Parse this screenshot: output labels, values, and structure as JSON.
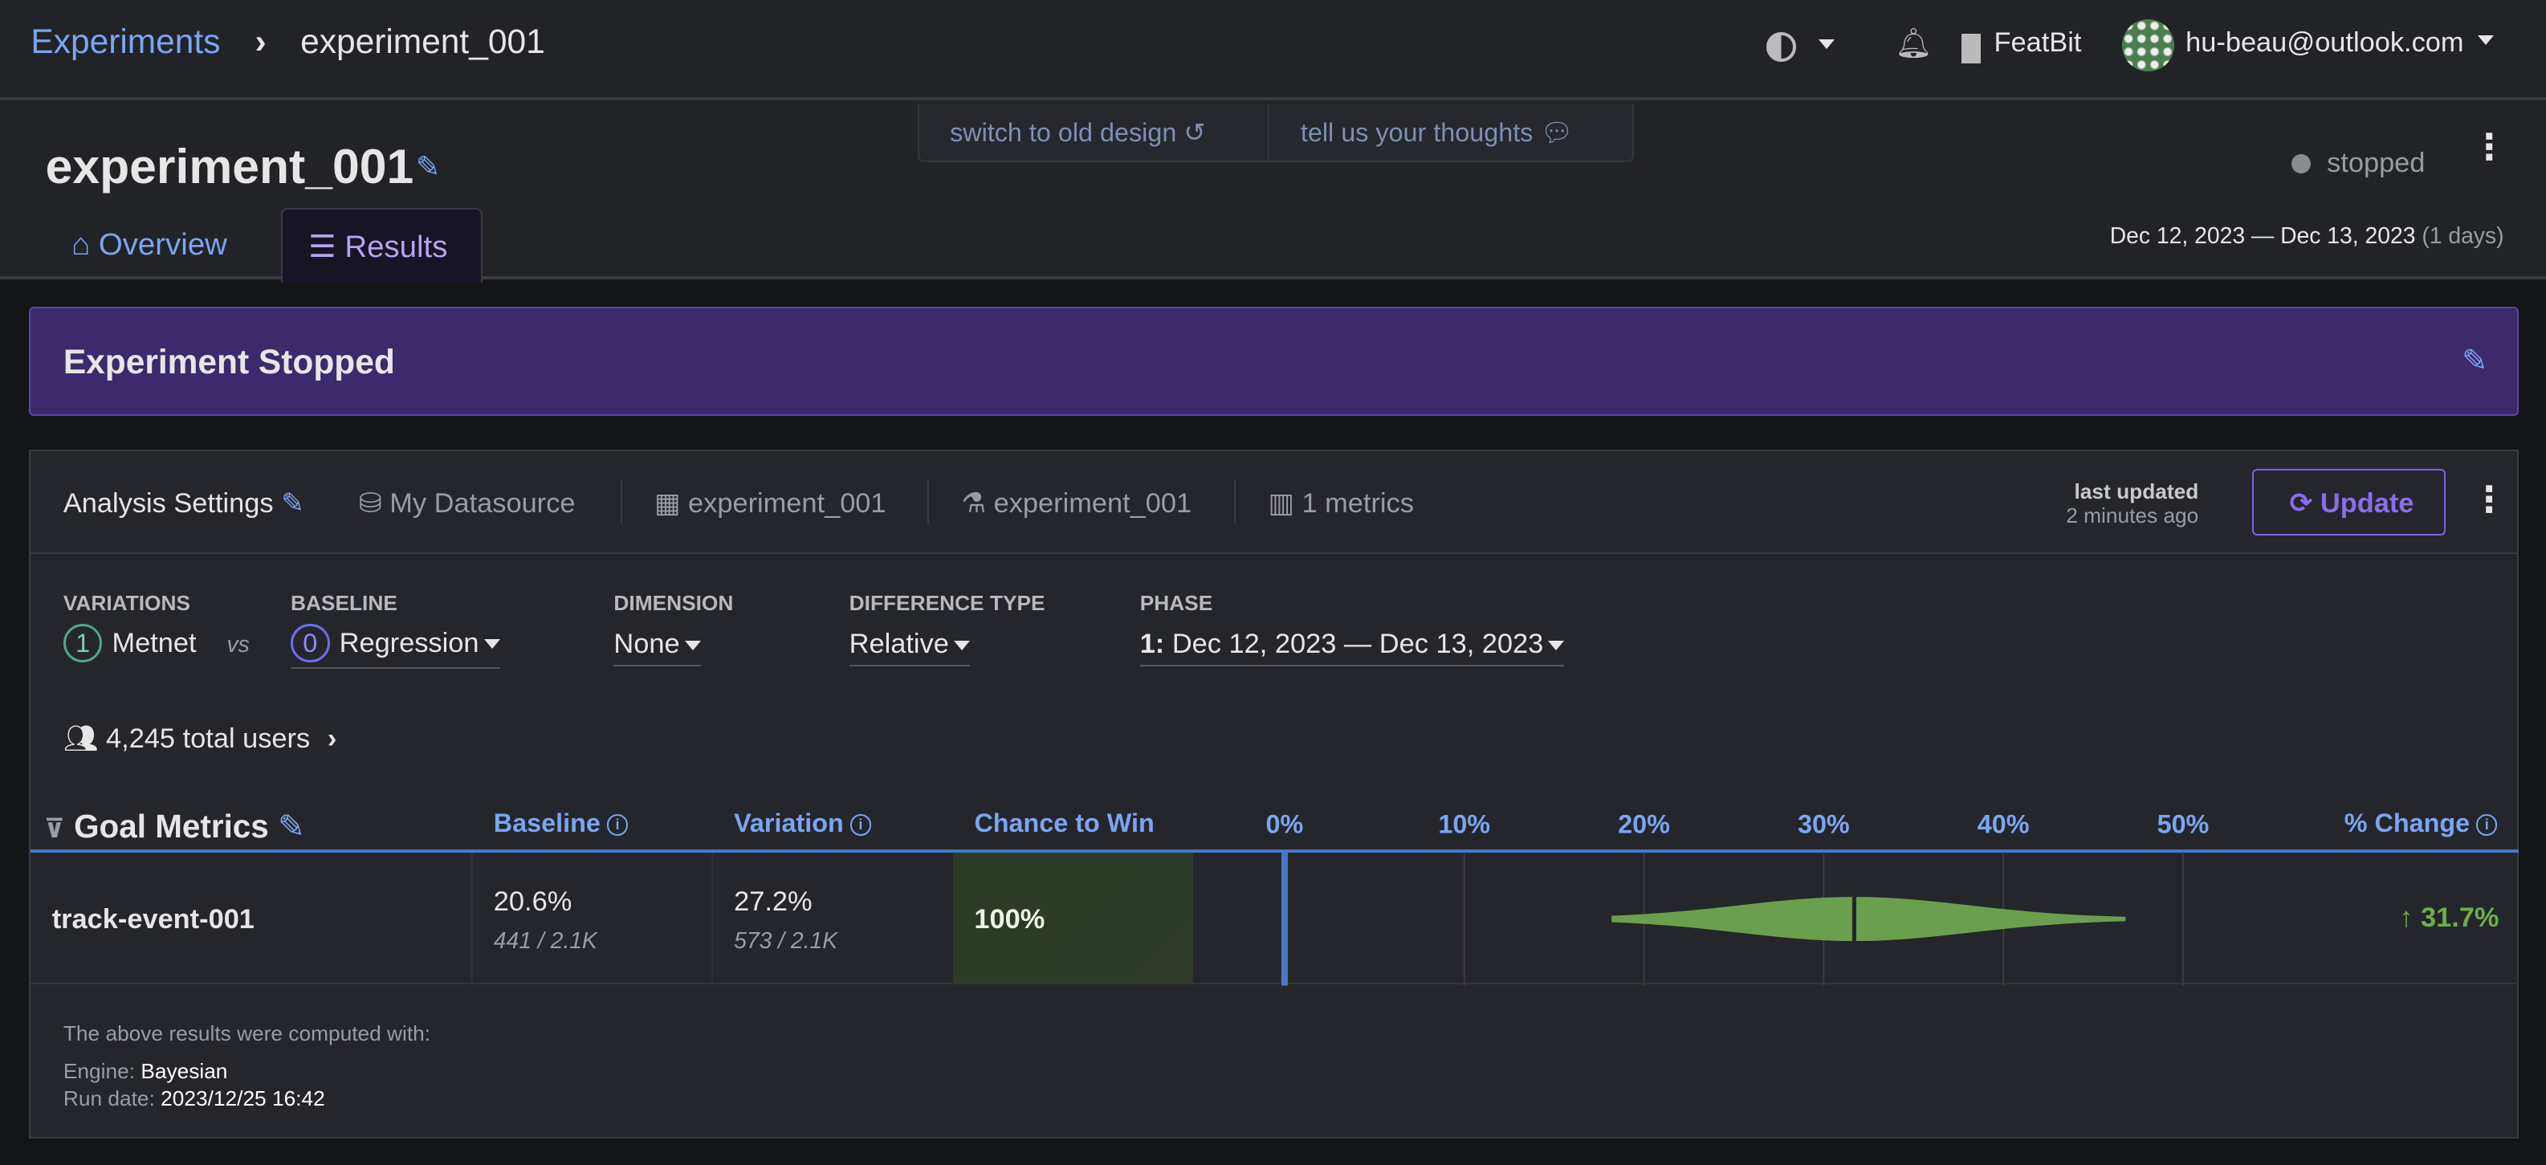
{
  "nav": {
    "breadcrumb_root": "Experiments",
    "breadcrumb_current": "experiment_001",
    "org": "FeatBit",
    "user": "hu-beau@outlook.com"
  },
  "header": {
    "title": "experiment_001",
    "feedback": {
      "switch": "switch to old design",
      "thoughts": "tell us your thoughts"
    },
    "status": "stopped",
    "date_range": "Dec 12, 2023 — Dec 13, 2023",
    "days": "(1 days)",
    "tabs": [
      {
        "label": "Overview",
        "active": false
      },
      {
        "label": "Results",
        "active": true
      }
    ]
  },
  "banner": {
    "text": "Experiment Stopped"
  },
  "settings": {
    "label": "Analysis Settings",
    "datasource": "My Datasource",
    "table": "experiment_001",
    "experiment": "experiment_001",
    "metrics": "1 metrics",
    "last_updated_label": "last updated",
    "last_updated": "2 minutes ago",
    "update": "Update"
  },
  "controls": {
    "variations_label": "Variations",
    "variation_index": "1",
    "variation": "Metnet",
    "vs": "vs",
    "baseline_label": "Baseline",
    "baseline_index": "0",
    "baseline": "Regression",
    "dimension_label": "Dimension",
    "dimension": "None",
    "difference_label": "Difference Type",
    "difference": "Relative",
    "phase_label": "Phase",
    "phase_index": "1:",
    "phase": "Dec 12, 2023 — Dec 13, 2023"
  },
  "users": "4,245 total users",
  "table": {
    "title": "Goal Metrics",
    "headers": {
      "baseline": "Baseline",
      "variation": "Variation",
      "chance": "Chance to Win",
      "change": "% Change"
    },
    "rows": [
      {
        "metric": "track-event-001",
        "baseline_rate": "20.6%",
        "baseline_counts": "441 / 2.1K",
        "variation_rate": "27.2%",
        "variation_counts": "573 / 2.1K",
        "chance": "100%",
        "change": "31.7%"
      }
    ]
  },
  "chart_data": {
    "type": "violin",
    "xlim": [
      -5,
      55
    ],
    "ticks": [
      "0%",
      "10%",
      "20%",
      "30%",
      "40%",
      "50%"
    ],
    "tick_values": [
      0,
      10,
      20,
      30,
      40,
      50
    ],
    "mean": 31.7,
    "interval": [
      18.2,
      46.8
    ],
    "color": "#6a9f4e",
    "axis_color": "#4a78c2"
  },
  "footer": {
    "intro": "The above results were computed with:",
    "engine_label": "Engine:",
    "engine": "Bayesian",
    "run_label": "Run date:",
    "run": "2023/12/25 16:42"
  },
  "colors": {
    "accent": "#7aa5f2",
    "banner": "#3c2a6d",
    "positive": "#6a9f4e",
    "update": "#8b6cf0"
  }
}
